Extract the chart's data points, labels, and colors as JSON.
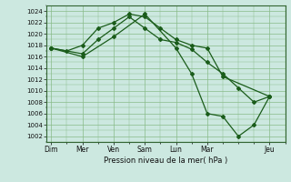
{
  "background_color": "#cce8e0",
  "grid_color": "#88bb88",
  "line_color": "#1a5c1a",
  "x_major_labels": [
    "Dim",
    "Mer",
    "Ven",
    "Sam",
    "Lun",
    "Mar",
    "Jeu"
  ],
  "x_major_positions": [
    0,
    2,
    4,
    6,
    8,
    10,
    14
  ],
  "xlim": [
    -0.3,
    15.0
  ],
  "ylim": [
    1001,
    1025
  ],
  "yticks": [
    1002,
    1004,
    1006,
    1008,
    1010,
    1012,
    1014,
    1016,
    1018,
    1020,
    1022,
    1024
  ],
  "xlabel": "Pression niveau de la mer( hPa )",
  "series": [
    {
      "x": [
        0,
        1,
        2,
        3,
        4,
        5,
        6,
        7,
        8,
        9,
        10,
        11,
        14
      ],
      "y": [
        1017.5,
        1017.0,
        1018.0,
        1021.0,
        1022.0,
        1023.5,
        1023.0,
        1021.0,
        1019.0,
        1018.0,
        1017.5,
        1012.5,
        1009.0
      ]
    },
    {
      "x": [
        0,
        2,
        3,
        4,
        5,
        6,
        7,
        8,
        9,
        10,
        11,
        12,
        13,
        14
      ],
      "y": [
        1017.5,
        1016.5,
        1019.0,
        1021.0,
        1023.0,
        1021.0,
        1019.0,
        1018.5,
        1017.3,
        1015.0,
        1013.0,
        1010.5,
        1008.0,
        1009.0
      ]
    },
    {
      "x": [
        0,
        2,
        4,
        6,
        8,
        9,
        10,
        11,
        12,
        13,
        14
      ],
      "y": [
        1017.5,
        1016.0,
        1019.5,
        1023.5,
        1017.5,
        1013.0,
        1006.0,
        1005.5,
        1002.0,
        1004.0,
        1009.0
      ]
    }
  ]
}
